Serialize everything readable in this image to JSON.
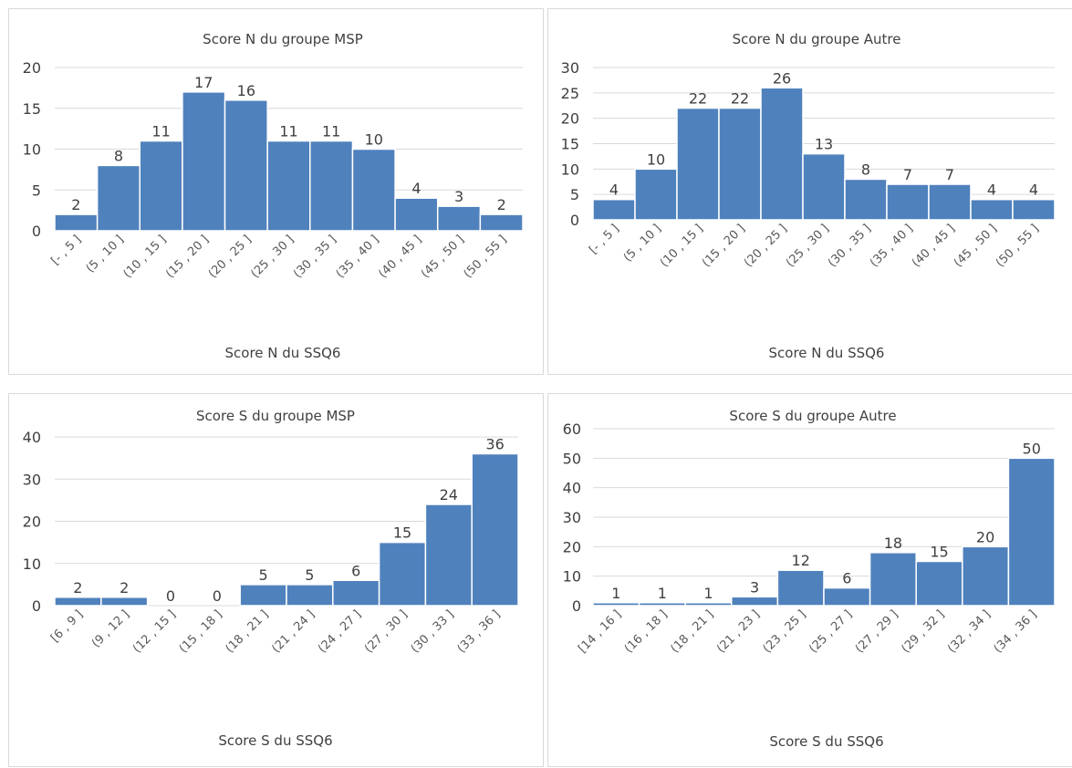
{
  "chart_data": [
    {
      "type": "bar",
      "title": "Score N du groupe MSP",
      "xlabel": "Score N du SSQ6",
      "ylabel": "",
      "ylim": [
        0,
        20
      ],
      "yticks": [
        0,
        5,
        10,
        15,
        20
      ],
      "grid": true,
      "legend": "none",
      "bar_color": "#4f81bd",
      "categories": [
        "[- , 5 ]",
        "(5 , 10 ]",
        "(10 , 15 ]",
        "(15 , 20 ]",
        "(20 , 25 ]",
        "(25 , 30 ]",
        "(30 , 35 ]",
        "(35 , 40 ]",
        "(40 , 45 ]",
        "(45 , 50 ]",
        "(50 , 55 ]"
      ],
      "values": [
        2,
        8,
        11,
        17,
        16,
        11,
        11,
        10,
        4,
        3,
        2
      ]
    },
    {
      "type": "bar",
      "title": "Score N du groupe Autre",
      "xlabel": "Score N du SSQ6",
      "ylabel": "",
      "ylim": [
        0,
        30
      ],
      "yticks": [
        0,
        5,
        10,
        15,
        20,
        25,
        30
      ],
      "grid": true,
      "legend": "none",
      "bar_color": "#4f81bd",
      "categories": [
        "[- , 5 ]",
        "(5 , 10 ]",
        "(10 , 15 ]",
        "(15 , 20 ]",
        "(20 , 25 ]",
        "(25 , 30 ]",
        "(30 , 35 ]",
        "(35 , 40 ]",
        "(40 , 45 ]",
        "(45 , 50 ]",
        "(50 , 55 ]"
      ],
      "values": [
        4,
        10,
        22,
        22,
        26,
        13,
        8,
        7,
        7,
        4,
        4
      ]
    },
    {
      "type": "bar",
      "title": "Score S du groupe MSP",
      "xlabel": "Score S du SSQ6",
      "ylabel": "",
      "ylim": [
        0,
        40
      ],
      "yticks": [
        0,
        10,
        20,
        30,
        40
      ],
      "grid": true,
      "legend": "none",
      "bar_color": "#4f81bd",
      "categories": [
        "[6 , 9 ]",
        "(9 , 12 ]",
        "(12 , 15 ]",
        "(15 , 18 ]",
        "(18 , 21 ]",
        "(21 , 24 ]",
        "(24 , 27 ]",
        "(27 , 30 ]",
        "(30 , 33 ]",
        "(33 , 36 ]"
      ],
      "values": [
        2,
        2,
        0,
        0,
        5,
        5,
        6,
        15,
        24,
        36
      ]
    },
    {
      "type": "bar",
      "title": "Score S du groupe Autre",
      "xlabel": "Score S du SSQ6",
      "ylabel": "",
      "ylim": [
        0,
        60
      ],
      "yticks": [
        0,
        10,
        20,
        30,
        40,
        50,
        60
      ],
      "grid": true,
      "legend": "none",
      "bar_color": "#4f81bd",
      "categories": [
        "[14 , 16 ]",
        "(16 , 18 ]",
        "(18 , 21 ]",
        "(21 , 23 ]",
        "(23 , 25 ]",
        "(25 , 27 ]",
        "(27 , 29 ]",
        "(29 , 32 ]",
        "(32 , 34 ]",
        "(34 , 36 ]"
      ],
      "values": [
        1,
        1,
        1,
        3,
        12,
        6,
        18,
        15,
        20,
        50
      ]
    }
  ]
}
